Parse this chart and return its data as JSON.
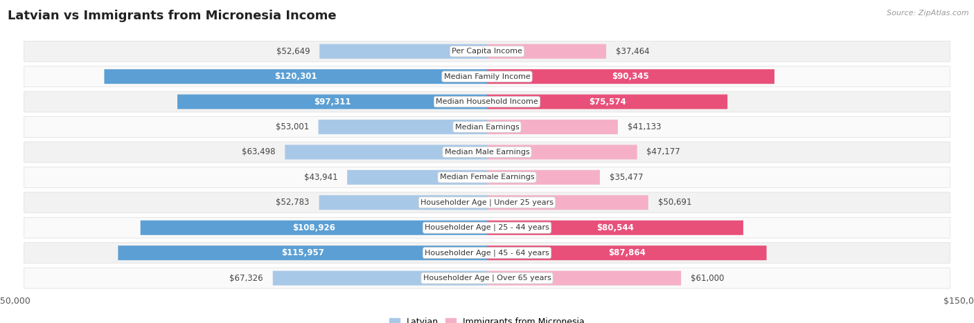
{
  "title": "Latvian vs Immigrants from Micronesia Income",
  "source": "Source: ZipAtlas.com",
  "categories": [
    "Per Capita Income",
    "Median Family Income",
    "Median Household Income",
    "Median Earnings",
    "Median Male Earnings",
    "Median Female Earnings",
    "Householder Age | Under 25 years",
    "Householder Age | 25 - 44 years",
    "Householder Age | 45 - 64 years",
    "Householder Age | Over 65 years"
  ],
  "latvian_values": [
    52649,
    120301,
    97311,
    53001,
    63498,
    43941,
    52783,
    108926,
    115957,
    67326
  ],
  "micronesia_values": [
    37464,
    90345,
    75574,
    41133,
    47177,
    35477,
    50691,
    80544,
    87864,
    61000
  ],
  "latvian_labels": [
    "$52,649",
    "$120,301",
    "$97,311",
    "$53,001",
    "$63,498",
    "$43,941",
    "$52,783",
    "$108,926",
    "$115,957",
    "$67,326"
  ],
  "micronesia_labels": [
    "$37,464",
    "$90,345",
    "$75,574",
    "$41,133",
    "$47,177",
    "$35,477",
    "$50,691",
    "$80,544",
    "$87,864",
    "$61,000"
  ],
  "max_value": 150000,
  "latvian_color_light": "#a8c8e8",
  "latvian_color_dark": "#5b9fd4",
  "micronesia_color_light": "#f5b0c8",
  "micronesia_color_dark": "#e8507a",
  "latvian_dark_threshold": 75000,
  "micronesia_dark_threshold": 65000,
  "background_color": "#ffffff",
  "row_bg_odd": "#f2f2f2",
  "row_bg_even": "#fafafa",
  "title_fontsize": 13,
  "label_fontsize": 8.5,
  "cat_fontsize": 8.0,
  "legend_fontsize": 9,
  "source_fontsize": 8
}
